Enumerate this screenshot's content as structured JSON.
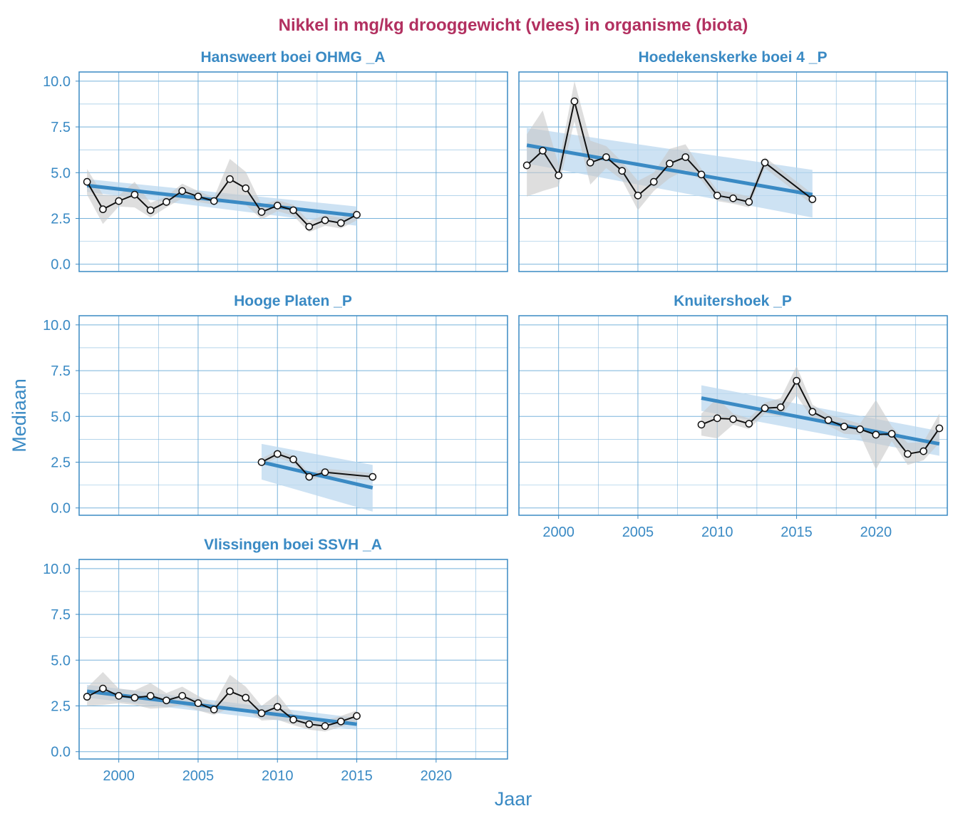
{
  "title": "Nikkel in mg/kg drooggewicht (vlees) in organisme (biota)",
  "colors": {
    "title": "#b23060",
    "accent": "#3a8ac4",
    "text": "#3a8ac4",
    "grid": "#6aaad6",
    "ribbon_trend": "#bcd8ef",
    "ribbon_series": "#c8c8c8",
    "line": "#111111",
    "point_fill": "#ffffff"
  },
  "chart_data": {
    "type": "line",
    "xlabel": "Jaar",
    "ylabel": "Mediaan",
    "xlim": [
      1997.5,
      2024.5
    ],
    "ylim": [
      -0.4,
      10.5
    ],
    "xticks": [
      2000,
      2005,
      2010,
      2015,
      2020
    ],
    "xtick_labels": [
      "2000",
      "2005",
      "2010",
      "2015",
      "2020"
    ],
    "yticks": [
      0,
      2.5,
      5,
      7.5,
      10
    ],
    "ytick_labels": [
      "0.0",
      "2.5",
      "5.0",
      "7.5",
      "10.0"
    ],
    "panels": [
      {
        "name": "Hansweert boei OHMG _A",
        "x": [
          1998,
          1999,
          2000,
          2001,
          2002,
          2003,
          2004,
          2005,
          2006,
          2007,
          2008,
          2009,
          2010,
          2011,
          2012,
          2013,
          2014,
          2015
        ],
        "y": [
          4.5,
          3.0,
          3.45,
          3.8,
          2.95,
          3.4,
          4.0,
          3.7,
          3.45,
          4.65,
          4.15,
          2.85,
          3.2,
          2.95,
          2.05,
          2.4,
          2.25,
          2.7
        ],
        "band": [
          0.7,
          0.8,
          0.3,
          0.7,
          0.4,
          0.3,
          0.4,
          0.3,
          0.2,
          1.1,
          0.9,
          0.4,
          0.3,
          0.3,
          0.3,
          0.3,
          0.3,
          0.3
        ],
        "trend": {
          "x": [
            1998,
            2015
          ],
          "y": [
            4.3,
            2.65
          ],
          "lo": [
            3.95,
            2.1
          ],
          "hi": [
            4.65,
            3.15
          ]
        }
      },
      {
        "name": "Hoedekenskerke boei 4 _P",
        "x": [
          1998,
          1999,
          2000,
          2001,
          2002,
          2003,
          2004,
          2005,
          2006,
          2007,
          2008,
          2009,
          2010,
          2011,
          2012,
          2013,
          2016
        ],
        "y": [
          5.4,
          6.2,
          4.85,
          8.9,
          5.55,
          5.85,
          5.1,
          3.75,
          4.5,
          5.5,
          5.85,
          4.9,
          3.75,
          3.6,
          3.4,
          5.55,
          3.55
        ],
        "band": [
          1.7,
          2.2,
          0.6,
          1.1,
          1.2,
          0.6,
          0.5,
          0.8,
          0.5,
          0.8,
          0.7,
          0.3,
          0.3,
          0.3,
          0.3,
          0.3,
          0.3
        ],
        "trend": {
          "x": [
            1998,
            2016
          ],
          "y": [
            6.5,
            3.8
          ],
          "lo": [
            5.5,
            2.55
          ],
          "hi": [
            7.45,
            5.15
          ]
        }
      },
      {
        "name": "Hooge Platen _P",
        "x": [
          2009,
          2010,
          2011,
          2012,
          2013,
          2016
        ],
        "y": [
          2.5,
          2.95,
          2.65,
          1.7,
          1.95,
          1.7
        ],
        "band": [
          0.2,
          0.2,
          0.2,
          0.2,
          0.2,
          0.2
        ],
        "trend": {
          "x": [
            2009,
            2016
          ],
          "y": [
            2.5,
            1.1
          ],
          "lo": [
            1.55,
            -0.2
          ],
          "hi": [
            3.5,
            2.35
          ]
        }
      },
      {
        "name": "Knuitershoek _P",
        "x": [
          2009,
          2010,
          2011,
          2012,
          2013,
          2014,
          2015,
          2016,
          2017,
          2018,
          2019,
          2020,
          2021,
          2022,
          2023,
          2024
        ],
        "y": [
          4.55,
          4.9,
          4.85,
          4.6,
          5.45,
          5.5,
          6.95,
          5.25,
          4.8,
          4.45,
          4.3,
          4.0,
          4.05,
          2.95,
          3.1,
          4.35
        ],
        "band": [
          0.6,
          1.1,
          0.3,
          0.3,
          0.3,
          0.5,
          0.8,
          0.4,
          0.3,
          0.4,
          0.3,
          1.9,
          0.4,
          0.6,
          0.5,
          0.8
        ],
        "trend": {
          "x": [
            2009,
            2024
          ],
          "y": [
            6.0,
            3.5
          ],
          "lo": [
            5.3,
            2.85
          ],
          "hi": [
            6.7,
            4.2
          ]
        }
      },
      {
        "name": "Vlissingen boei SSVH _A",
        "x": [
          1998,
          1999,
          2000,
          2001,
          2002,
          2003,
          2004,
          2005,
          2006,
          2007,
          2008,
          2009,
          2010,
          2011,
          2012,
          2013,
          2014,
          2015
        ],
        "y": [
          3.0,
          3.45,
          3.05,
          2.95,
          3.05,
          2.8,
          3.05,
          2.65,
          2.3,
          3.3,
          2.95,
          2.1,
          2.45,
          1.75,
          1.5,
          1.4,
          1.65,
          1.95
        ],
        "band": [
          0.5,
          0.9,
          0.4,
          0.4,
          0.7,
          0.4,
          0.5,
          0.4,
          0.3,
          0.9,
          0.6,
          0.4,
          0.7,
          0.3,
          0.3,
          0.3,
          0.3,
          0.3
        ],
        "trend": {
          "x": [
            1998,
            2015
          ],
          "y": [
            3.3,
            1.5
          ],
          "lo": [
            2.95,
            1.2
          ],
          "hi": [
            3.65,
            1.85
          ]
        }
      }
    ]
  }
}
